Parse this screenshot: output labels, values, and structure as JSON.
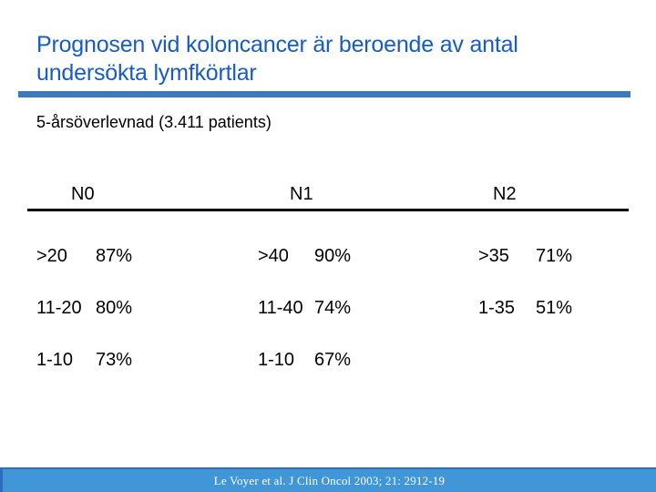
{
  "slide": {
    "title_line1": "Prognosen vid koloncancer är beroende av antal",
    "title_line2": "undersökta lymfkörtlar",
    "subtitle": "5-årsöverlevnad (3.411 patients)",
    "colors": {
      "title_blue": "#175cc4",
      "rule_blue": "#3b7abc",
      "table_text": "#000000",
      "footer_bar_fill": "#4196d8",
      "footer_bar_border": "#2c6fbe",
      "footer_text": "#ffffff"
    },
    "table": {
      "headers": [
        "N0",
        "N1",
        "N2"
      ],
      "rows": [
        {
          "n0_label": ">20",
          "n0_value": "87%",
          "n1_label": ">40",
          "n1_value": "90%",
          "n2_label": ">35",
          "n2_value": "71%"
        },
        {
          "n0_label": "11-20",
          "n0_value": "80%",
          "n1_label": "11-40",
          "n1_value": "74%",
          "n2_label": "1-35",
          "n2_value": "51%"
        },
        {
          "n0_label": "1-10",
          "n0_value": "73%",
          "n1_label": "1-10",
          "n1_value": "67%"
        }
      ]
    },
    "footer": {
      "citation": "Le Voyer et al. J Clin Oncol 2003; 21: 2912-19"
    }
  }
}
